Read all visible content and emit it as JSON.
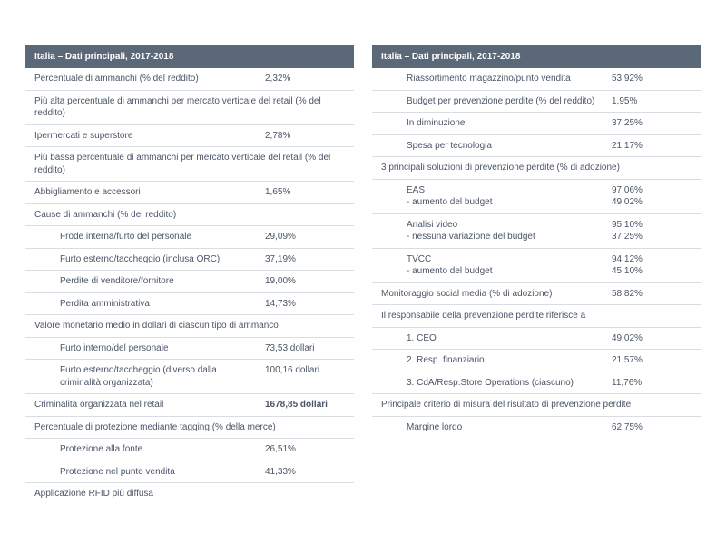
{
  "title": "Italia – Dati principali, 2017-2018",
  "left": [
    {
      "t": "data",
      "label": "Percentuale di ammanchi (% del reddito)",
      "value": "2,32%"
    },
    {
      "t": "section",
      "label": "Più alta percentuale di ammanchi per mercato verticale del retail (% del reddito)"
    },
    {
      "t": "data",
      "label": "Ipermercati e superstore",
      "value": "2,78%"
    },
    {
      "t": "section",
      "label": "Più bassa percentuale di ammanchi per mercato verticale del retail (% del reddito)"
    },
    {
      "t": "data",
      "label": "Abbigliamento e accessori",
      "value": "1,65%"
    },
    {
      "t": "section",
      "label": "Cause di ammanchi (% del reddito)"
    },
    {
      "t": "data",
      "indent": true,
      "label": "Frode interna/furto del personale",
      "value": "29,09%"
    },
    {
      "t": "data",
      "indent": true,
      "label": "Furto esterno/taccheggio (inclusa ORC)",
      "value": "37,19%"
    },
    {
      "t": "data",
      "indent": true,
      "label": "Perdite di venditore/fornitore",
      "value": "19,00%"
    },
    {
      "t": "data",
      "indent": true,
      "label": "Perdita amministrativa",
      "value": "14,73%"
    },
    {
      "t": "section",
      "label": "Valore monetario medio in dollari di ciascun tipo di ammanco"
    },
    {
      "t": "data",
      "indent": true,
      "label": "Furto interno/del personale",
      "value": "73,53 dollari"
    },
    {
      "t": "data",
      "indent": true,
      "label": "Furto esterno/taccheggio (diverso dalla criminalità organizzata)",
      "value": "100,16 dollari"
    },
    {
      "t": "data-bold",
      "label": "Criminalità organizzata nel retail",
      "value": "1678,85 dollari"
    },
    {
      "t": "section",
      "label": "Percentuale di protezione mediante tagging (% della merce)"
    },
    {
      "t": "data",
      "indent": true,
      "label": "Protezione alla fonte",
      "value": "26,51%"
    },
    {
      "t": "data",
      "indent": true,
      "label": "Protezione nel punto vendita",
      "value": "41,33%"
    },
    {
      "t": "section",
      "label": "Applicazione RFID più diffusa",
      "last": true
    }
  ],
  "right": [
    {
      "t": "data",
      "indent": true,
      "label": "Riassortimento magazzino/punto vendita",
      "value": "53,92%"
    },
    {
      "t": "data",
      "indent": true,
      "label": "Budget per prevenzione perdite (% del reddito)",
      "value": "1,95%"
    },
    {
      "t": "data",
      "indent": true,
      "label": "In diminuzione",
      "value": "37,25%"
    },
    {
      "t": "data",
      "indent": true,
      "label": "Spesa per tecnologia",
      "value": "21,17%"
    },
    {
      "t": "section",
      "label": "3 principali soluzioni di prevenzione perdite (% di adozione)"
    },
    {
      "t": "data",
      "indent": true,
      "label": "EAS\n- aumento del budget",
      "value": "97,06%\n49,02%"
    },
    {
      "t": "data",
      "indent": true,
      "label": "Analisi video\n- nessuna variazione del budget",
      "value": "95,10%\n37,25%"
    },
    {
      "t": "data",
      "indent": true,
      "label": "TVCC\n- aumento del budget",
      "value": "94,12%\n45,10%"
    },
    {
      "t": "data",
      "label": "Monitoraggio social media (% di adozione)",
      "value": "58,82%"
    },
    {
      "t": "section",
      "label": "Il responsabile della prevenzione perdite riferisce a"
    },
    {
      "t": "data",
      "indent": true,
      "label": "1. CEO",
      "value": "49,02%"
    },
    {
      "t": "data",
      "indent": true,
      "label": "2. Resp. finanziario",
      "value": "21,57%"
    },
    {
      "t": "data",
      "indent": true,
      "label": "3. CdA/Resp.Store Operations (ciascuno)",
      "value": "11,76%"
    },
    {
      "t": "section",
      "label": "Principale criterio di misura del risultato di prevenzione perdite"
    },
    {
      "t": "data",
      "indent": true,
      "label": "Margine lordo",
      "value": "62,75%",
      "last": true
    }
  ]
}
